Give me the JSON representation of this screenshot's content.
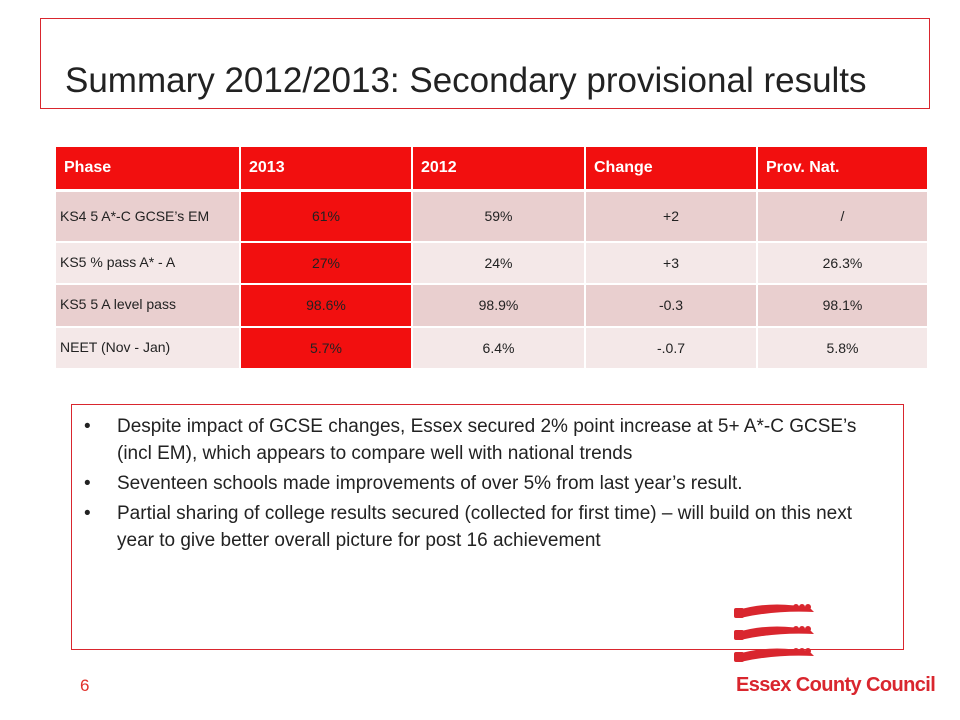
{
  "title": "Summary 2012/2013: Secondary provisional results",
  "table": {
    "headers": [
      "Phase",
      "2013",
      "2012",
      "Change",
      "Prov. Nat."
    ],
    "rows": [
      {
        "phase": "KS4 5 A*-C GCSE’s EM",
        "y2013": "61%",
        "y2012": "59%",
        "change": "+2",
        "prov_nat": "/"
      },
      {
        "phase": "KS5 % pass A* - A",
        "y2013": "27%",
        "y2012": "24%",
        "change": "+3",
        "prov_nat": "26.3%"
      },
      {
        "phase": "KS5 5 A level pass",
        "y2013": "98.6%",
        "y2012": "98.9%",
        "change": "-0.3",
        "prov_nat": "98.1%"
      },
      {
        "phase": "NEET (Nov - Jan)",
        "y2013": "5.7%",
        "y2012": "6.4%",
        "change": "-.0.7",
        "prov_nat": "5.8%"
      }
    ]
  },
  "bullets": [
    "Despite impact of GCSE changes, Essex secured 2% point increase at 5+ A*-C GCSE’s (incl EM), which appears to compare well with national trends",
    "Seventeen schools made improvements of over 5% from last year’s result.",
    "Partial sharing of college results  secured (collected for first time) – will build on this next year to give better overall picture for post 16 achievement"
  ],
  "bullet_glyph": "•",
  "page_number": "6",
  "logo": {
    "text": "Essex County Council",
    "icon": "three-seaxes-icon",
    "color": "#d9262e"
  },
  "colors": {
    "accent_red": "#f20f0f",
    "border_red": "#d9262e",
    "row_odd": "#e9cfcf",
    "row_even": "#f4e8e8"
  }
}
